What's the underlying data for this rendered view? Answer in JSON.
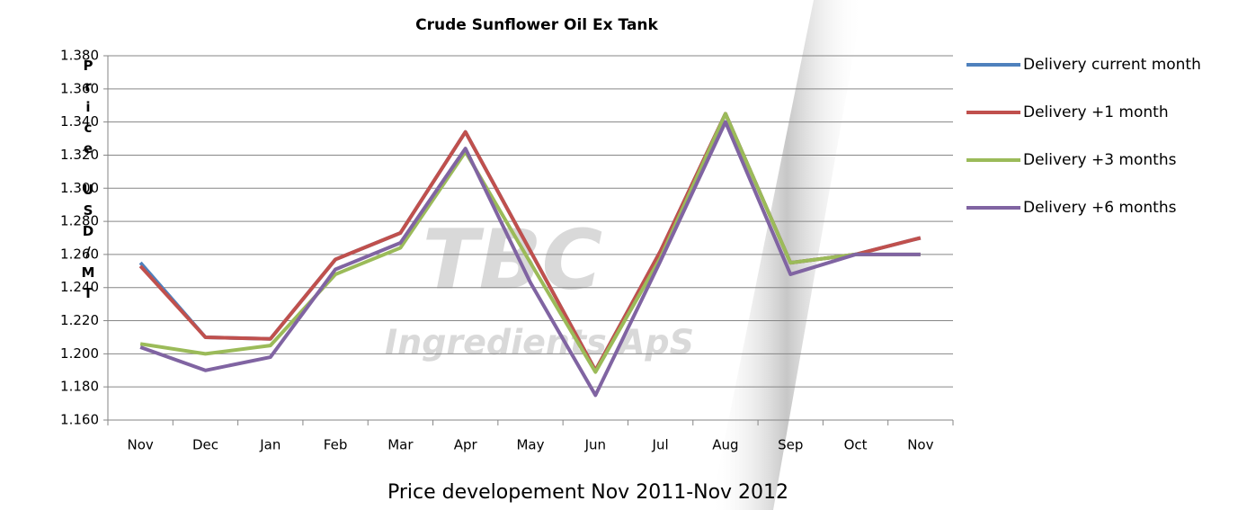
{
  "chart_data": {
    "type": "line",
    "title": "Crude Sunflower Oil Ex Tank",
    "y_label": "Price USD/MT",
    "x_label": "Price developement Nov 2011-Nov 2012",
    "watermark": [
      "TBC",
      "Ingredients ApS"
    ],
    "categories": [
      "Nov",
      "Dec",
      "Jan",
      "Feb",
      "Mar",
      "Apr",
      "May",
      "Jun",
      "Jul",
      "Aug",
      "Sep",
      "Oct",
      "Nov"
    ],
    "series": [
      {
        "name": "Delivery current month",
        "color": "#4f81bd",
        "values": [
          1255,
          1210,
          1209,
          1257,
          1273,
          1334,
          1262,
          1190,
          1262,
          1345,
          1255,
          1260,
          1270
        ]
      },
      {
        "name": "Delivery +1 month",
        "color": "#c0504d",
        "values": [
          1253,
          1210,
          1209,
          1257,
          1273,
          1334,
          1262,
          1190,
          1262,
          1345,
          1255,
          1260,
          1270
        ]
      },
      {
        "name": "Delivery +3 months",
        "color": "#9bbb59",
        "values": [
          1206,
          1200,
          1205,
          1248,
          1264,
          1322,
          1255,
          1189,
          1258,
          1345,
          1255,
          1260,
          1260
        ]
      },
      {
        "name": "Delivery +6 months",
        "color": "#8064a2",
        "values": [
          1204,
          1190,
          1198,
          1251,
          1267,
          1324,
          1243,
          1175,
          1256,
          1340,
          1248,
          1260,
          1260
        ]
      }
    ],
    "ylim": [
      1160,
      1380
    ],
    "yticks": [
      {
        "value": 1160,
        "label": "1.160"
      },
      {
        "value": 1180,
        "label": "1.180"
      },
      {
        "value": 1200,
        "label": "1.200"
      },
      {
        "value": 1220,
        "label": "1.220"
      },
      {
        "value": 1240,
        "label": "1.240"
      },
      {
        "value": 1260,
        "label": "1.260"
      },
      {
        "value": 1280,
        "label": "1.280"
      },
      {
        "value": 1300,
        "label": "1.300"
      },
      {
        "value": 1320,
        "label": "1.320"
      },
      {
        "value": 1340,
        "label": "1.340"
      },
      {
        "value": 1360,
        "label": "1.360"
      },
      {
        "value": 1380,
        "label": "1.380"
      }
    ],
    "grid": true,
    "legend": "right"
  }
}
